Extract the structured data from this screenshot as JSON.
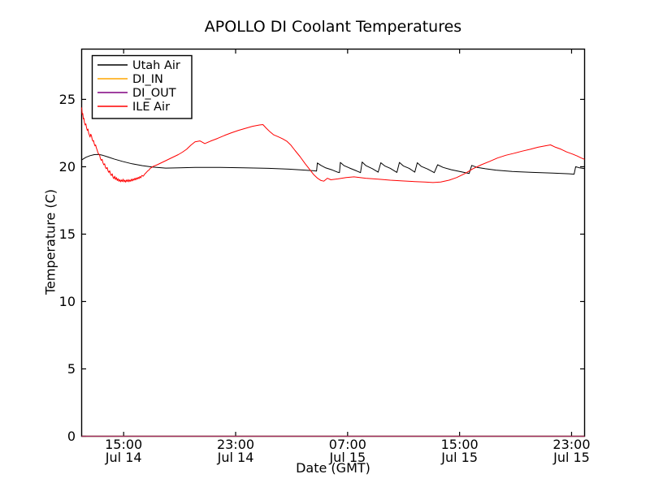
{
  "figure": {
    "title": "APOLLO DI Coolant Temperatures",
    "xlabel": "Date (GMT)",
    "ylabel": "Temperature (C)"
  },
  "chart_data": {
    "type": "line",
    "title": "APOLLO DI Coolant Temperatures",
    "xlabel": "Date (GMT)",
    "ylabel": "Temperature (C)",
    "x_unit": "hours since Jul 14 00:00 GMT",
    "xlim": [
      12.0,
      47.93
    ],
    "ylim": [
      0,
      28.73
    ],
    "grid": false,
    "yticks": [
      {
        "value": 0,
        "label": "0"
      },
      {
        "value": 5,
        "label": "5"
      },
      {
        "value": 10,
        "label": "10"
      },
      {
        "value": 15,
        "label": "15"
      },
      {
        "value": 20,
        "label": "20"
      },
      {
        "value": 25,
        "label": "25"
      }
    ],
    "xticks": [
      {
        "value": 15,
        "time": "15:00",
        "date": "Jul 14"
      },
      {
        "value": 23,
        "time": "23:00",
        "date": "Jul 14"
      },
      {
        "value": 31,
        "time": "07:00",
        "date": "Jul 15"
      },
      {
        "value": 39,
        "time": "15:00",
        "date": "Jul 15"
      },
      {
        "value": 47,
        "time": "23:00",
        "date": "Jul 15"
      }
    ],
    "legend": {
      "position": "upper left",
      "entries": [
        {
          "label": "Utah Air",
          "color": "#000000"
        },
        {
          "label": "DI_IN",
          "color": "#ffa500"
        },
        {
          "label": "DI_OUT",
          "color": "#800080"
        },
        {
          "label": "ILE Air",
          "color": "#ff0000"
        }
      ]
    },
    "series": [
      {
        "name": "Utah Air",
        "color": "#000000",
        "width": 1.0,
        "opacity": 1,
        "points": [
          [
            12.0,
            20.5
          ],
          [
            12.3,
            20.7
          ],
          [
            12.6,
            20.82
          ],
          [
            12.9,
            20.9
          ],
          [
            13.2,
            20.92
          ],
          [
            13.5,
            20.85
          ],
          [
            13.9,
            20.72
          ],
          [
            14.3,
            20.58
          ],
          [
            14.9,
            20.4
          ],
          [
            15.6,
            20.22
          ],
          [
            16.35,
            20.08
          ],
          [
            17.1,
            19.97
          ],
          [
            18.0,
            19.9
          ],
          [
            19.0,
            19.92
          ],
          [
            20.1,
            19.95
          ],
          [
            21.9,
            19.95
          ],
          [
            23.6,
            19.92
          ],
          [
            25.35,
            19.88
          ],
          [
            26.8,
            19.82
          ],
          [
            27.95,
            19.75
          ],
          [
            28.6,
            19.7
          ],
          [
            28.78,
            19.68
          ],
          [
            28.84,
            20.28
          ],
          [
            29.1,
            20.1
          ],
          [
            29.4,
            19.93
          ],
          [
            29.9,
            19.76
          ],
          [
            30.28,
            19.6
          ],
          [
            30.42,
            19.57
          ],
          [
            30.48,
            20.32
          ],
          [
            30.75,
            20.08
          ],
          [
            31.15,
            19.9
          ],
          [
            31.62,
            19.7
          ],
          [
            31.92,
            19.56
          ],
          [
            32.04,
            20.35
          ],
          [
            32.31,
            20.08
          ],
          [
            32.78,
            19.85
          ],
          [
            33.18,
            19.6
          ],
          [
            33.37,
            20.3
          ],
          [
            33.65,
            20.06
          ],
          [
            34.05,
            19.88
          ],
          [
            34.52,
            19.58
          ],
          [
            34.7,
            20.32
          ],
          [
            34.98,
            20.06
          ],
          [
            35.4,
            19.88
          ],
          [
            35.8,
            19.6
          ],
          [
            35.98,
            20.3
          ],
          [
            36.26,
            20.03
          ],
          [
            36.72,
            19.83
          ],
          [
            37.19,
            19.56
          ],
          [
            37.43,
            20.15
          ],
          [
            37.83,
            19.95
          ],
          [
            38.41,
            19.78
          ],
          [
            39.04,
            19.64
          ],
          [
            39.68,
            19.5
          ],
          [
            39.87,
            20.1
          ],
          [
            40.26,
            19.95
          ],
          [
            40.84,
            19.85
          ],
          [
            41.6,
            19.75
          ],
          [
            42.76,
            19.65
          ],
          [
            44.21,
            19.58
          ],
          [
            45.66,
            19.53
          ],
          [
            46.82,
            19.48
          ],
          [
            47.18,
            19.45
          ],
          [
            47.29,
            20.0
          ],
          [
            47.57,
            19.92
          ],
          [
            47.93,
            19.86
          ]
        ]
      },
      {
        "name": "DI_IN",
        "color": "#ffa500",
        "width": 1.2,
        "opacity": 1,
        "points": [
          [
            12.0,
            0
          ],
          [
            47.93,
            0
          ]
        ]
      },
      {
        "name": "DI_OUT",
        "color": "#800080",
        "width": 1.2,
        "opacity": 0.75,
        "points": [
          [
            12.0,
            0
          ],
          [
            47.93,
            0
          ]
        ]
      },
      {
        "name": "ILE Air",
        "color": "#ff0000",
        "width": 1.0,
        "opacity": 1,
        "points": [
          [
            12.0,
            24.4
          ],
          [
            12.04,
            23.9
          ],
          [
            12.08,
            23.95
          ],
          [
            12.12,
            23.55
          ],
          [
            12.16,
            23.6
          ],
          [
            12.2,
            23.3
          ],
          [
            12.25,
            23.1
          ],
          [
            12.3,
            23.18
          ],
          [
            12.35,
            22.9
          ],
          [
            12.4,
            22.7
          ],
          [
            12.45,
            22.8
          ],
          [
            12.5,
            22.5
          ],
          [
            12.55,
            22.35
          ],
          [
            12.6,
            22.2
          ],
          [
            12.65,
            22.42
          ],
          [
            12.7,
            22.3
          ],
          [
            12.75,
            22.05
          ],
          [
            12.8,
            21.9
          ],
          [
            12.85,
            21.95
          ],
          [
            12.9,
            21.7
          ],
          [
            12.95,
            21.55
          ],
          [
            13.0,
            21.62
          ],
          [
            13.05,
            21.4
          ],
          [
            13.1,
            21.25
          ],
          [
            13.16,
            21.05
          ],
          [
            13.22,
            20.95
          ],
          [
            13.28,
            20.85
          ],
          [
            13.34,
            20.6
          ],
          [
            13.4,
            20.48
          ],
          [
            13.46,
            20.55
          ],
          [
            13.52,
            20.3
          ],
          [
            13.58,
            20.15
          ],
          [
            13.64,
            20.22
          ],
          [
            13.7,
            19.95
          ],
          [
            13.76,
            19.85
          ],
          [
            13.82,
            19.95
          ],
          [
            13.88,
            19.7
          ],
          [
            13.94,
            19.58
          ],
          [
            14.0,
            19.7
          ],
          [
            14.06,
            19.45
          ],
          [
            14.12,
            19.35
          ],
          [
            14.18,
            19.48
          ],
          [
            14.24,
            19.22
          ],
          [
            14.3,
            19.12
          ],
          [
            14.36,
            19.3
          ],
          [
            14.42,
            19.05
          ],
          [
            14.48,
            19.2
          ],
          [
            14.54,
            18.98
          ],
          [
            14.6,
            19.12
          ],
          [
            14.66,
            18.92
          ],
          [
            14.72,
            19.05
          ],
          [
            14.78,
            18.88
          ],
          [
            14.84,
            19.02
          ],
          [
            14.9,
            18.9
          ],
          [
            14.96,
            19.08
          ],
          [
            15.02,
            18.88
          ],
          [
            15.08,
            19.0
          ],
          [
            15.14,
            18.86
          ],
          [
            15.2,
            19.02
          ],
          [
            15.26,
            18.9
          ],
          [
            15.32,
            19.05
          ],
          [
            15.38,
            18.88
          ],
          [
            15.44,
            19.02
          ],
          [
            15.5,
            18.92
          ],
          [
            15.56,
            19.08
          ],
          [
            15.62,
            18.95
          ],
          [
            15.68,
            19.1
          ],
          [
            15.74,
            19.0
          ],
          [
            15.8,
            19.15
          ],
          [
            15.86,
            19.02
          ],
          [
            15.92,
            19.18
          ],
          [
            15.98,
            19.08
          ],
          [
            16.04,
            19.22
          ],
          [
            16.1,
            19.12
          ],
          [
            16.16,
            19.28
          ],
          [
            16.22,
            19.18
          ],
          [
            16.3,
            19.35
          ],
          [
            16.4,
            19.3
          ],
          [
            16.5,
            19.45
          ],
          [
            16.6,
            19.55
          ],
          [
            16.7,
            19.68
          ],
          [
            16.8,
            19.75
          ],
          [
            16.9,
            19.88
          ],
          [
            17.0,
            19.95
          ],
          [
            17.1,
            20.02
          ],
          [
            17.4,
            20.15
          ],
          [
            17.7,
            20.3
          ],
          [
            18.0,
            20.45
          ],
          [
            18.3,
            20.6
          ],
          [
            18.6,
            20.75
          ],
          [
            18.9,
            20.9
          ],
          [
            19.2,
            21.08
          ],
          [
            19.5,
            21.3
          ],
          [
            19.8,
            21.6
          ],
          [
            20.1,
            21.85
          ],
          [
            20.45,
            21.92
          ],
          [
            20.8,
            21.72
          ],
          [
            21.2,
            21.9
          ],
          [
            21.7,
            22.1
          ],
          [
            22.2,
            22.32
          ],
          [
            22.7,
            22.52
          ],
          [
            23.2,
            22.7
          ],
          [
            23.7,
            22.85
          ],
          [
            24.2,
            23.0
          ],
          [
            24.7,
            23.1
          ],
          [
            24.95,
            23.13
          ],
          [
            25.2,
            22.85
          ],
          [
            25.45,
            22.6
          ],
          [
            25.7,
            22.38
          ],
          [
            26.05,
            22.22
          ],
          [
            26.35,
            22.08
          ],
          [
            26.65,
            21.9
          ],
          [
            26.95,
            21.6
          ],
          [
            27.25,
            21.2
          ],
          [
            27.6,
            20.75
          ],
          [
            27.95,
            20.25
          ],
          [
            28.25,
            19.85
          ],
          [
            28.55,
            19.45
          ],
          [
            28.85,
            19.15
          ],
          [
            29.1,
            18.98
          ],
          [
            29.3,
            18.93
          ],
          [
            29.55,
            19.15
          ],
          [
            29.8,
            19.03
          ],
          [
            30.3,
            19.1
          ],
          [
            30.9,
            19.2
          ],
          [
            31.45,
            19.25
          ],
          [
            32.3,
            19.15
          ],
          [
            33.2,
            19.08
          ],
          [
            34.05,
            19.0
          ],
          [
            34.9,
            18.95
          ],
          [
            35.8,
            18.9
          ],
          [
            36.5,
            18.87
          ],
          [
            37.1,
            18.83
          ],
          [
            37.65,
            18.87
          ],
          [
            38.25,
            19.0
          ],
          [
            38.8,
            19.2
          ],
          [
            39.4,
            19.5
          ],
          [
            39.95,
            19.85
          ],
          [
            40.55,
            20.15
          ],
          [
            41.15,
            20.4
          ],
          [
            41.7,
            20.65
          ],
          [
            42.3,
            20.85
          ],
          [
            42.9,
            21.0
          ],
          [
            43.45,
            21.15
          ],
          [
            44.05,
            21.3
          ],
          [
            44.6,
            21.45
          ],
          [
            45.1,
            21.55
          ],
          [
            45.5,
            21.62
          ],
          [
            45.85,
            21.45
          ],
          [
            46.25,
            21.3
          ],
          [
            46.65,
            21.1
          ],
          [
            47.05,
            20.95
          ],
          [
            47.4,
            20.8
          ],
          [
            47.7,
            20.65
          ],
          [
            47.93,
            20.55
          ]
        ]
      }
    ]
  }
}
